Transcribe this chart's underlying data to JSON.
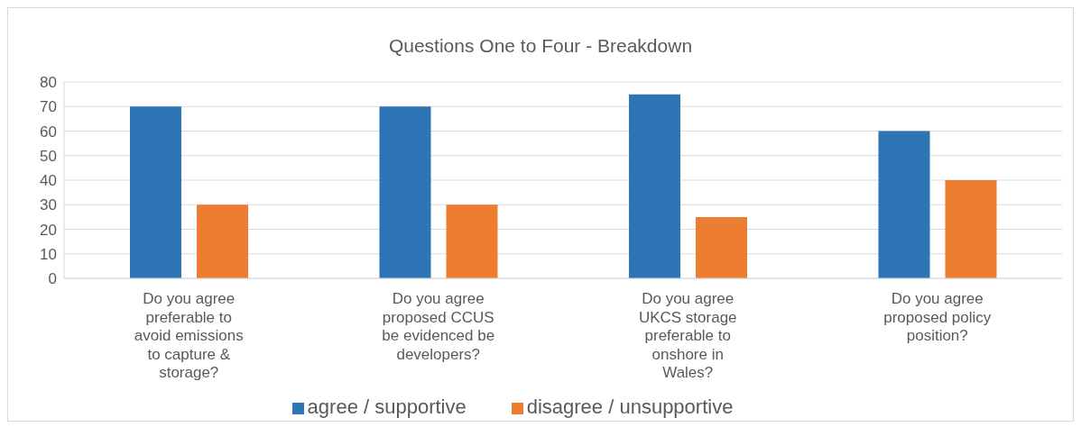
{
  "chart_data": {
    "type": "bar",
    "title": "Questions One to Four - Breakdown",
    "categories": [
      "Do you agree preferable to avoid emissions to capture & storage?",
      "Do you agree proposed CCUS be evidenced be developers?",
      "Do you agree UKCS storage preferable to onshore in Wales?",
      "Do you agree proposed policy position?"
    ],
    "series": [
      {
        "name": "agree / supportive",
        "color": "#2e75b6",
        "values": [
          70,
          70,
          75,
          60
        ]
      },
      {
        "name": "disagree / unsupportive",
        "color": "#ed7d31",
        "values": [
          30,
          30,
          25,
          40
        ]
      }
    ],
    "ylim": [
      0,
      80
    ],
    "yticks": [
      0,
      10,
      20,
      30,
      40,
      50,
      60,
      70,
      80
    ],
    "grid": "y",
    "legend": "bottom"
  }
}
